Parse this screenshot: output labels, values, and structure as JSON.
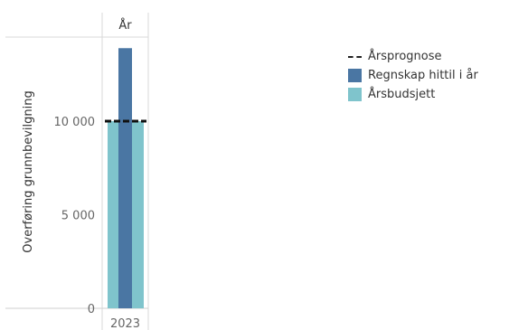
{
  "chart_data": {
    "type": "bar",
    "column_header": "År",
    "categories": [
      "2023"
    ],
    "ylabel": "Overføring grunnbevilgning",
    "ylim": [
      0,
      14500
    ],
    "yticks": [
      {
        "value": 0,
        "label": "0"
      },
      {
        "value": 5000,
        "label": "5 000"
      },
      {
        "value": 10000,
        "label": "10 000"
      }
    ],
    "series": [
      {
        "name": "Årsbudsjett",
        "type": "bar",
        "values": [
          10000
        ],
        "color": "#7fc4cc"
      },
      {
        "name": "Regnskap hittil i år",
        "type": "bar",
        "values": [
          13900
        ],
        "color": "#4a76a3"
      },
      {
        "name": "Årsprognose",
        "type": "reference-line",
        "values": [
          10000
        ],
        "color": "#111111"
      }
    ],
    "legend": {
      "placement": "right",
      "items": [
        {
          "label": "Årsprognose",
          "kind": "dashed",
          "color": "#222222"
        },
        {
          "label": "Regnskap hittil i år",
          "kind": "box",
          "color": "#4a76a3"
        },
        {
          "label": "Årsbudsjett",
          "kind": "box",
          "color": "#7fc4cc"
        }
      ]
    }
  }
}
